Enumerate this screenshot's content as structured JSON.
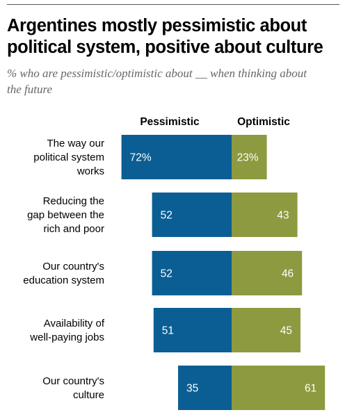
{
  "title": "Argentines mostly pessimistic about political system, positive about culture",
  "subtitle": "% who are pessimistic/optimistic about __ when thinking about the future",
  "colors": {
    "pessimistic": "#0b5e93",
    "optimistic": "#8d9a3f",
    "text": "#000000",
    "subtitle": "#666666"
  },
  "chart_data": {
    "type": "bar",
    "orientation": "horizontal-diverging",
    "series": [
      {
        "name": "Pessimistic",
        "values": [
          72,
          52,
          52,
          51,
          35
        ],
        "labels": [
          "72%",
          "52",
          "52",
          "51",
          "35"
        ]
      },
      {
        "name": "Optimistic",
        "values": [
          23,
          43,
          46,
          45,
          61
        ],
        "labels": [
          "23%",
          "43",
          "46",
          "45",
          "61"
        ]
      }
    ],
    "categories": [
      [
        "The way our",
        "political system",
        "works"
      ],
      [
        "Reducing the",
        "gap between the",
        "rich and poor"
      ],
      [
        "Our country's",
        "education system"
      ],
      [
        "Availability of",
        "well-paying jobs"
      ],
      [
        "Our country's",
        "culture"
      ]
    ],
    "xlim": [
      0,
      100
    ]
  }
}
